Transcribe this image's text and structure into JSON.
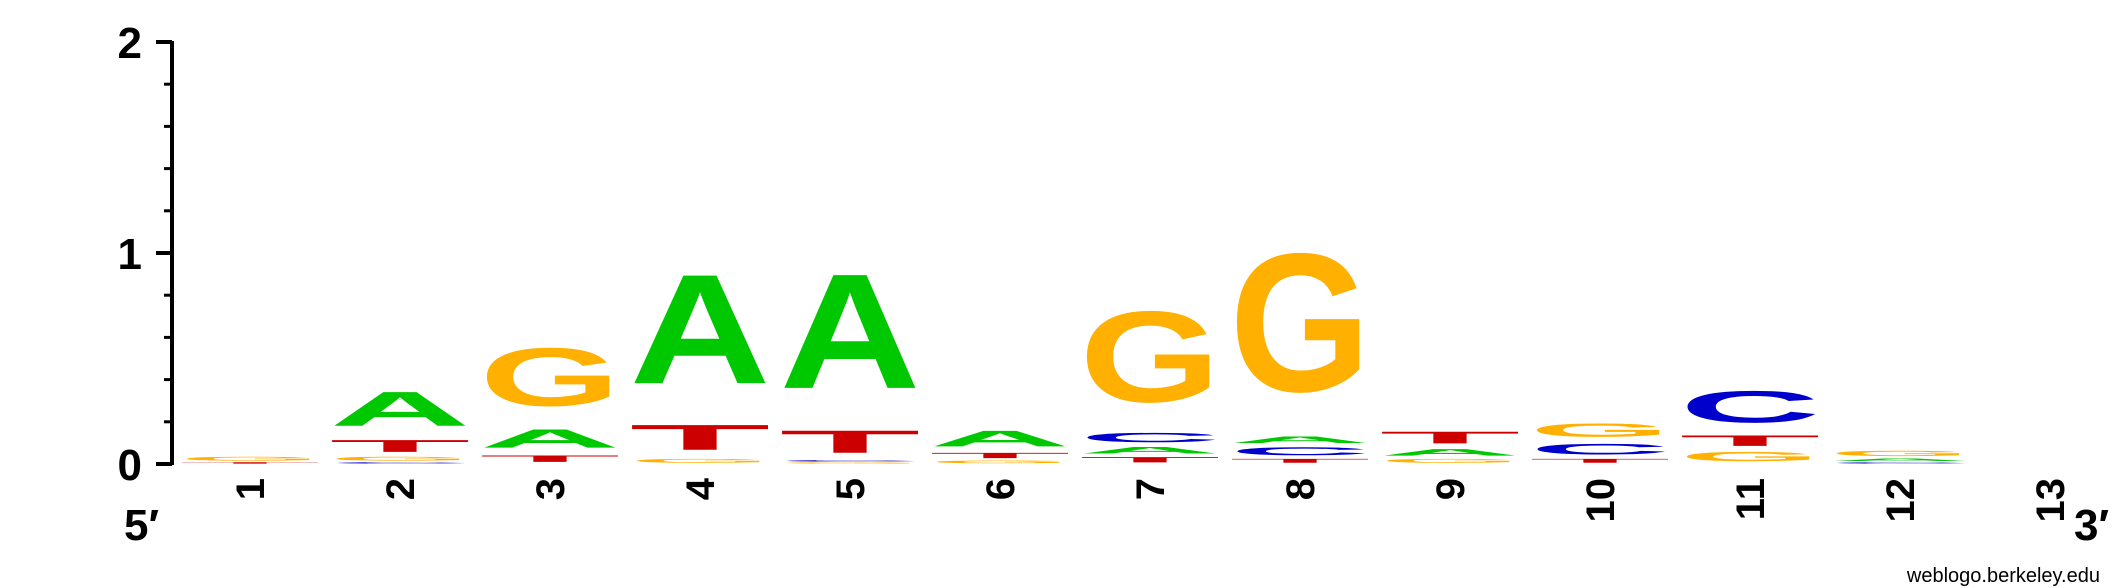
{
  "chart_data": {
    "type": "sequence-logo",
    "ylabel_ticks": [
      "0",
      "1",
      "2"
    ],
    "ylim": [
      0,
      2
    ],
    "x_start_label": "5′",
    "x_end_label": "3′",
    "credit": "weblogo.berkeley.edu",
    "colors": {
      "A": "#00c800",
      "C": "#0000cc",
      "G": "#ffb000",
      "T": "#cc0000"
    },
    "positions": [
      {
        "label": "1",
        "stack": [
          {
            "letter": "T",
            "height": 0.01
          },
          {
            "letter": "G",
            "height": 0.03
          }
        ]
      },
      {
        "label": "2",
        "stack": [
          {
            "letter": "C",
            "height": 0.01
          },
          {
            "letter": "G",
            "height": 0.03
          },
          {
            "letter": "T",
            "height": 0.09
          },
          {
            "letter": "A",
            "height": 0.26
          }
        ]
      },
      {
        "label": "3",
        "stack": [
          {
            "letter": "T",
            "height": 0.05
          },
          {
            "letter": "A",
            "height": 0.14
          },
          {
            "letter": "G",
            "height": 0.44
          }
        ]
      },
      {
        "label": "4",
        "stack": [
          {
            "letter": "G",
            "height": 0.03
          },
          {
            "letter": "T",
            "height": 0.19
          },
          {
            "letter": "A",
            "height": 0.83
          }
        ]
      },
      {
        "label": "5",
        "stack": [
          {
            "letter": "G",
            "height": 0.01
          },
          {
            "letter": "C",
            "height": 0.01
          },
          {
            "letter": "T",
            "height": 0.17
          },
          {
            "letter": "A",
            "height": 0.87
          }
        ]
      },
      {
        "label": "6",
        "stack": [
          {
            "letter": "G",
            "height": 0.02
          },
          {
            "letter": "T",
            "height": 0.04
          },
          {
            "letter": "A",
            "height": 0.12
          }
        ]
      },
      {
        "label": "7",
        "stack": [
          {
            "letter": "T",
            "height": 0.04
          },
          {
            "letter": "A",
            "height": 0.05
          },
          {
            "letter": "C",
            "height": 0.07
          },
          {
            "letter": "G",
            "height": 0.69
          }
        ]
      },
      {
        "label": "8",
        "stack": [
          {
            "letter": "T",
            "height": 0.03
          },
          {
            "letter": "C",
            "height": 0.06
          },
          {
            "letter": "A",
            "height": 0.05
          },
          {
            "letter": "G",
            "height": 1.05
          }
        ]
      },
      {
        "label": "9",
        "stack": [
          {
            "letter": "G",
            "height": 0.03
          },
          {
            "letter": "A",
            "height": 0.05
          },
          {
            "letter": "T",
            "height": 0.09
          }
        ]
      },
      {
        "label": "10",
        "stack": [
          {
            "letter": "T",
            "height": 0.03
          },
          {
            "letter": "C",
            "height": 0.08
          },
          {
            "letter": "G",
            "height": 0.1
          }
        ]
      },
      {
        "label": "11",
        "stack": [
          {
            "letter": "G",
            "height": 0.07
          },
          {
            "letter": "T",
            "height": 0.08
          },
          {
            "letter": "C",
            "height": 0.24
          }
        ]
      },
      {
        "label": "12",
        "stack": [
          {
            "letter": "C",
            "height": 0.01
          },
          {
            "letter": "A",
            "height": 0.02
          },
          {
            "letter": "G",
            "height": 0.04
          }
        ]
      },
      {
        "label": "13",
        "stack": []
      }
    ]
  }
}
